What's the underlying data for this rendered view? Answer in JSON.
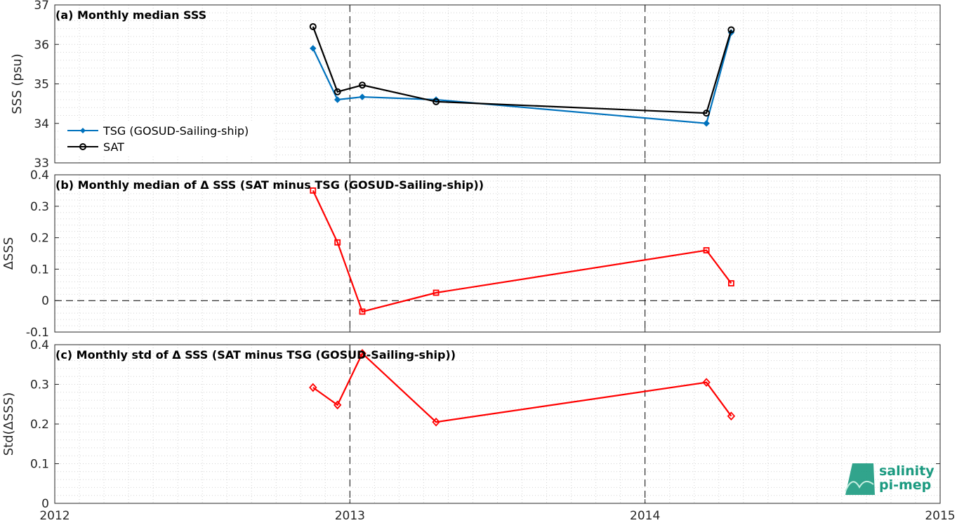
{
  "chart_data": [
    {
      "type": "line",
      "title": "(a) Monthly median SSS",
      "ylabel": "SSS (psu)",
      "xlim": [
        2012,
        2015
      ],
      "ylim": [
        33,
        37
      ],
      "x_ticks": [
        "2012",
        "2013",
        "2014",
        "2015"
      ],
      "y_ticks": [
        "33",
        "34",
        "35",
        "36",
        "37"
      ],
      "grid": true,
      "legend_position": "bottom-left",
      "series": [
        {
          "name": "TSG (GOSUD-Sailing-ship)",
          "color": "#0072bd",
          "marker": "diamond-filled",
          "x": [
            2012.875,
            2012.958,
            2013.042,
            2013.292,
            2014.208,
            2014.292
          ],
          "y": [
            35.9,
            34.6,
            34.67,
            34.6,
            34.0,
            36.3
          ]
        },
        {
          "name": "SAT",
          "color": "#000000",
          "marker": "circle-open",
          "x": [
            2012.875,
            2012.958,
            2013.042,
            2013.292,
            2014.208,
            2014.292
          ],
          "y": [
            36.45,
            34.8,
            34.97,
            34.55,
            34.26,
            36.37
          ]
        }
      ]
    },
    {
      "type": "line",
      "title": "(b) Monthly median of Δ SSS (SAT minus TSG (GOSUD-Sailing-ship))",
      "ylabel": "ΔSSS",
      "xlim": [
        2012,
        2015
      ],
      "ylim": [
        -0.1,
        0.4
      ],
      "x_ticks": [
        "2012",
        "2013",
        "2014",
        "2015"
      ],
      "y_ticks": [
        "-0.1",
        "0",
        "0.1",
        "0.2",
        "0.3",
        "0.4"
      ],
      "grid": true,
      "series": [
        {
          "color": "#ff0000",
          "marker": "square-open",
          "x": [
            2012.875,
            2012.958,
            2013.042,
            2013.292,
            2014.208,
            2014.292
          ],
          "y": [
            0.35,
            0.185,
            -0.035,
            0.025,
            0.16,
            0.055
          ]
        }
      ]
    },
    {
      "type": "line",
      "title": "(c) Monthly std of Δ SSS (SAT minus TSG (GOSUD-Sailing-ship))",
      "ylabel": "Std(ΔSSS)",
      "xlim": [
        2012,
        2015
      ],
      "ylim": [
        0,
        0.4
      ],
      "x_ticks": [
        "2012",
        "2013",
        "2014",
        "2015"
      ],
      "y_ticks": [
        "0",
        "0.1",
        "0.2",
        "0.3",
        "0.4"
      ],
      "grid": true,
      "series": [
        {
          "color": "#ff0000",
          "marker": "diamond-open",
          "x": [
            2012.875,
            2012.958,
            2013.042,
            2013.292,
            2014.208,
            2014.292
          ],
          "y": [
            0.292,
            0.248,
            0.378,
            0.205,
            0.305,
            0.22
          ]
        }
      ]
    }
  ],
  "logo": {
    "line1": "salinity",
    "line2": "pi-mep",
    "color": "#1b9a80"
  }
}
